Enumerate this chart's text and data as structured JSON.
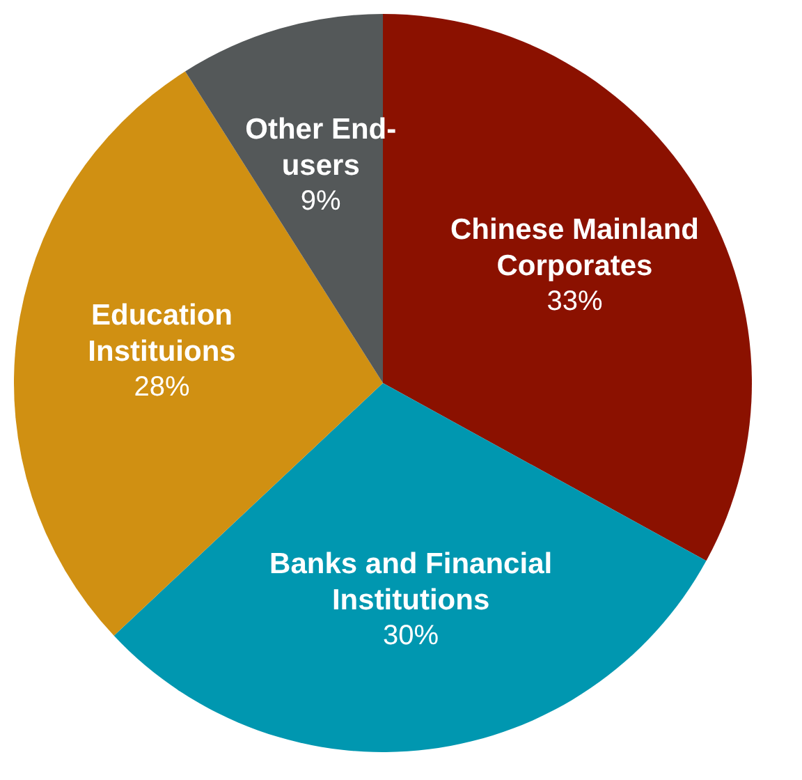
{
  "chart_data": {
    "type": "pie",
    "categories": [
      "Chinese Mainland Corporates",
      "Banks and Financial Institutions",
      "Education Instituions",
      "Other End-users"
    ],
    "values": [
      33,
      30,
      28,
      9
    ],
    "colors": [
      "#8b1100",
      "#0097b0",
      "#d09012",
      "#545859"
    ],
    "value_labels": [
      "33%",
      "30%",
      "28%",
      "9%"
    ],
    "legend": false
  }
}
